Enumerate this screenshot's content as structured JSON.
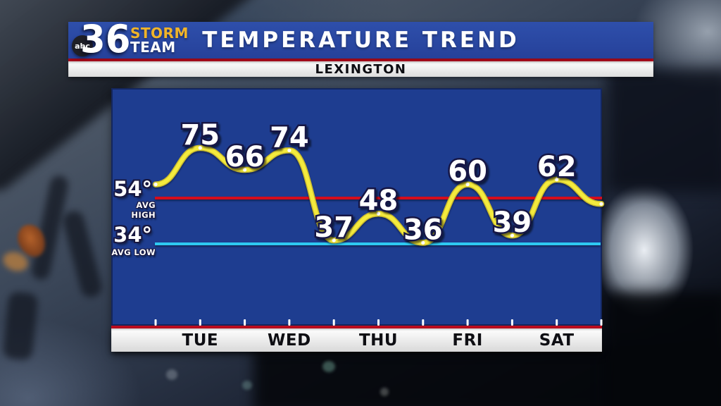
{
  "header": {
    "station": {
      "network": "abc",
      "channel": "36",
      "line1": "STORM",
      "line2": "TEAM"
    },
    "title": "TEMPERATURE TREND",
    "location": "LEXINGTON"
  },
  "chart_data": {
    "type": "line",
    "title": "TEMPERATURE TREND",
    "subtitle": "LEXINGTON",
    "x_days": [
      "TUE",
      "WED",
      "THU",
      "FRI",
      "SAT"
    ],
    "series": [
      {
        "name": "Temperature",
        "points": [
          {
            "temp": 60,
            "label": ""
          },
          {
            "temp": 75,
            "label": "75"
          },
          {
            "temp": 66,
            "label": "66"
          },
          {
            "temp": 74,
            "label": "74"
          },
          {
            "temp": 37,
            "label": "37"
          },
          {
            "temp": 48,
            "label": "48"
          },
          {
            "temp": 36,
            "label": "36"
          },
          {
            "temp": 60,
            "label": "60"
          },
          {
            "temp": 39,
            "label": "39"
          },
          {
            "temp": 62,
            "label": "62"
          },
          {
            "temp": 52,
            "label": ""
          }
        ]
      }
    ],
    "avg_high": {
      "temp": 54,
      "display": "54°",
      "caption": "AVG HIGH",
      "color": "#d50a1e"
    },
    "avg_low": {
      "temp": 34,
      "display": "34°",
      "caption": "AVG LOW",
      "color": "#2ec9f2"
    },
    "line_color": "#f4eb3e",
    "line_edge_color": "#cabb2e",
    "point_color": "#ffffff",
    "plot_background": "#1e3d90",
    "banner_background": "#2a47a0",
    "rule_color": "#c00d20"
  }
}
